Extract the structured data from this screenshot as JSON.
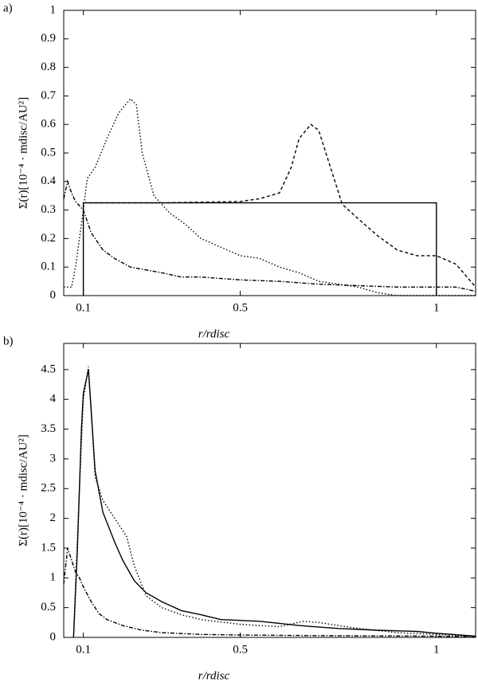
{
  "chart_data": [
    {
      "type": "line",
      "panel_label": "a)",
      "xlabel": "r/rdisc",
      "ylabel": "Σ(r)[10⁻⁴ · mdisc/AU²]",
      "xlim": [
        0.05,
        1.1
      ],
      "xticks": [
        0.1,
        0.5,
        1
      ],
      "ylim": [
        0,
        1
      ],
      "yticks": [
        0,
        0.1,
        0.2,
        0.3,
        0.4,
        0.5,
        0.6,
        0.7,
        0.8,
        0.9,
        1
      ],
      "series": [
        {
          "color": "#000000",
          "dash": "none",
          "x": [
            0.1,
            0.1,
            1,
            1
          ],
          "values": [
            0,
            0.325,
            0.325,
            0
          ]
        },
        {
          "color": "#000000",
          "dash": "4 3",
          "x": [
            0.1,
            0.3,
            0.5,
            0.55,
            0.6,
            0.63,
            0.65,
            0.68,
            0.7,
            0.73,
            0.76,
            0.8,
            0.85,
            0.9,
            0.95,
            1.0,
            1.05,
            1.1
          ],
          "values": [
            0.325,
            0.325,
            0.33,
            0.34,
            0.36,
            0.45,
            0.55,
            0.6,
            0.58,
            0.45,
            0.32,
            0.27,
            0.21,
            0.16,
            0.14,
            0.14,
            0.11,
            0.03
          ]
        },
        {
          "color": "#000000",
          "dash": "1.5 2.5",
          "x": [
            0.05,
            0.07,
            0.08,
            0.09,
            0.1,
            0.11,
            0.13,
            0.16,
            0.19,
            0.22,
            0.235,
            0.25,
            0.28,
            0.32,
            0.36,
            0.4,
            0.45,
            0.5,
            0.55,
            0.6,
            0.65,
            0.7,
            0.8,
            0.85,
            0.9,
            1.1
          ],
          "values": [
            0.03,
            0.03,
            0.1,
            0.2,
            0.3,
            0.41,
            0.45,
            0.55,
            0.64,
            0.69,
            0.67,
            0.5,
            0.35,
            0.29,
            0.25,
            0.2,
            0.17,
            0.14,
            0.13,
            0.1,
            0.08,
            0.05,
            0.03,
            0.01,
            0,
            0
          ]
        },
        {
          "color": "#000000",
          "dash": "5 2 1.5 2",
          "x": [
            0.05,
            0.06,
            0.07,
            0.08,
            0.1,
            0.12,
            0.15,
            0.18,
            0.22,
            0.26,
            0.3,
            0.35,
            0.4,
            0.45,
            0.5,
            0.6,
            0.7,
            0.8,
            0.9,
            1.0,
            1.05,
            1.1
          ],
          "values": [
            0.34,
            0.4,
            0.36,
            0.33,
            0.3,
            0.22,
            0.16,
            0.13,
            0.1,
            0.09,
            0.08,
            0.065,
            0.065,
            0.06,
            0.055,
            0.05,
            0.04,
            0.035,
            0.03,
            0.03,
            0.03,
            0.015
          ]
        }
      ]
    },
    {
      "type": "line",
      "panel_label": "b)",
      "xlabel": "r/rdisc",
      "ylabel": "Σ(r)[10⁻⁴ · mdisc/AU²]",
      "xlim": [
        0.05,
        1.1
      ],
      "xticks": [
        0.1,
        0.5,
        1
      ],
      "ylim": [
        0,
        4.94
      ],
      "yticks": [
        0,
        0.5,
        1,
        1.5,
        2,
        2.5,
        3,
        3.5,
        4,
        4.5
      ],
      "series": [
        {
          "color": "#000000",
          "dash": "none",
          "x": [
            0.075,
            0.085,
            0.095,
            0.1,
            0.113,
            0.12,
            0.13,
            0.15,
            0.18,
            0.2,
            0.23,
            0.26,
            0.3,
            0.35,
            0.4,
            0.45,
            0.55,
            0.65,
            0.75,
            0.85,
            0.95,
            1.0,
            1.1
          ],
          "values": [
            0,
            1.5,
            3.5,
            4.1,
            4.5,
            3.8,
            2.8,
            2.1,
            1.6,
            1.3,
            0.95,
            0.75,
            0.6,
            0.45,
            0.38,
            0.3,
            0.27,
            0.2,
            0.15,
            0.12,
            0.1,
            0.07,
            0.02
          ]
        },
        {
          "color": "#000000",
          "dash": "1.5 2.5",
          "x": [
            0.075,
            0.09,
            0.1,
            0.113,
            0.12,
            0.13,
            0.15,
            0.18,
            0.21,
            0.23,
            0.26,
            0.3,
            0.35,
            0.4,
            0.5,
            0.6,
            0.66,
            0.7,
            0.8,
            0.9,
            1.0,
            1.1
          ],
          "values": [
            0,
            2.5,
            4.0,
            4.55,
            3.8,
            2.7,
            2.3,
            2.0,
            1.7,
            1.2,
            0.7,
            0.5,
            0.38,
            0.3,
            0.22,
            0.18,
            0.27,
            0.25,
            0.15,
            0.08,
            0.05,
            0.02
          ]
        },
        {
          "color": "#000000",
          "dash": "5 2 1.5 2",
          "x": [
            0.05,
            0.06,
            0.07,
            0.08,
            0.09,
            0.1,
            0.12,
            0.14,
            0.16,
            0.2,
            0.25,
            0.3,
            0.4,
            0.5,
            0.7,
            1.0,
            1.1
          ],
          "values": [
            0.9,
            1.5,
            1.3,
            1.1,
            1.0,
            0.85,
            0.6,
            0.4,
            0.3,
            0.2,
            0.12,
            0.08,
            0.05,
            0.04,
            0.03,
            0.02,
            0.01
          ]
        }
      ]
    }
  ]
}
